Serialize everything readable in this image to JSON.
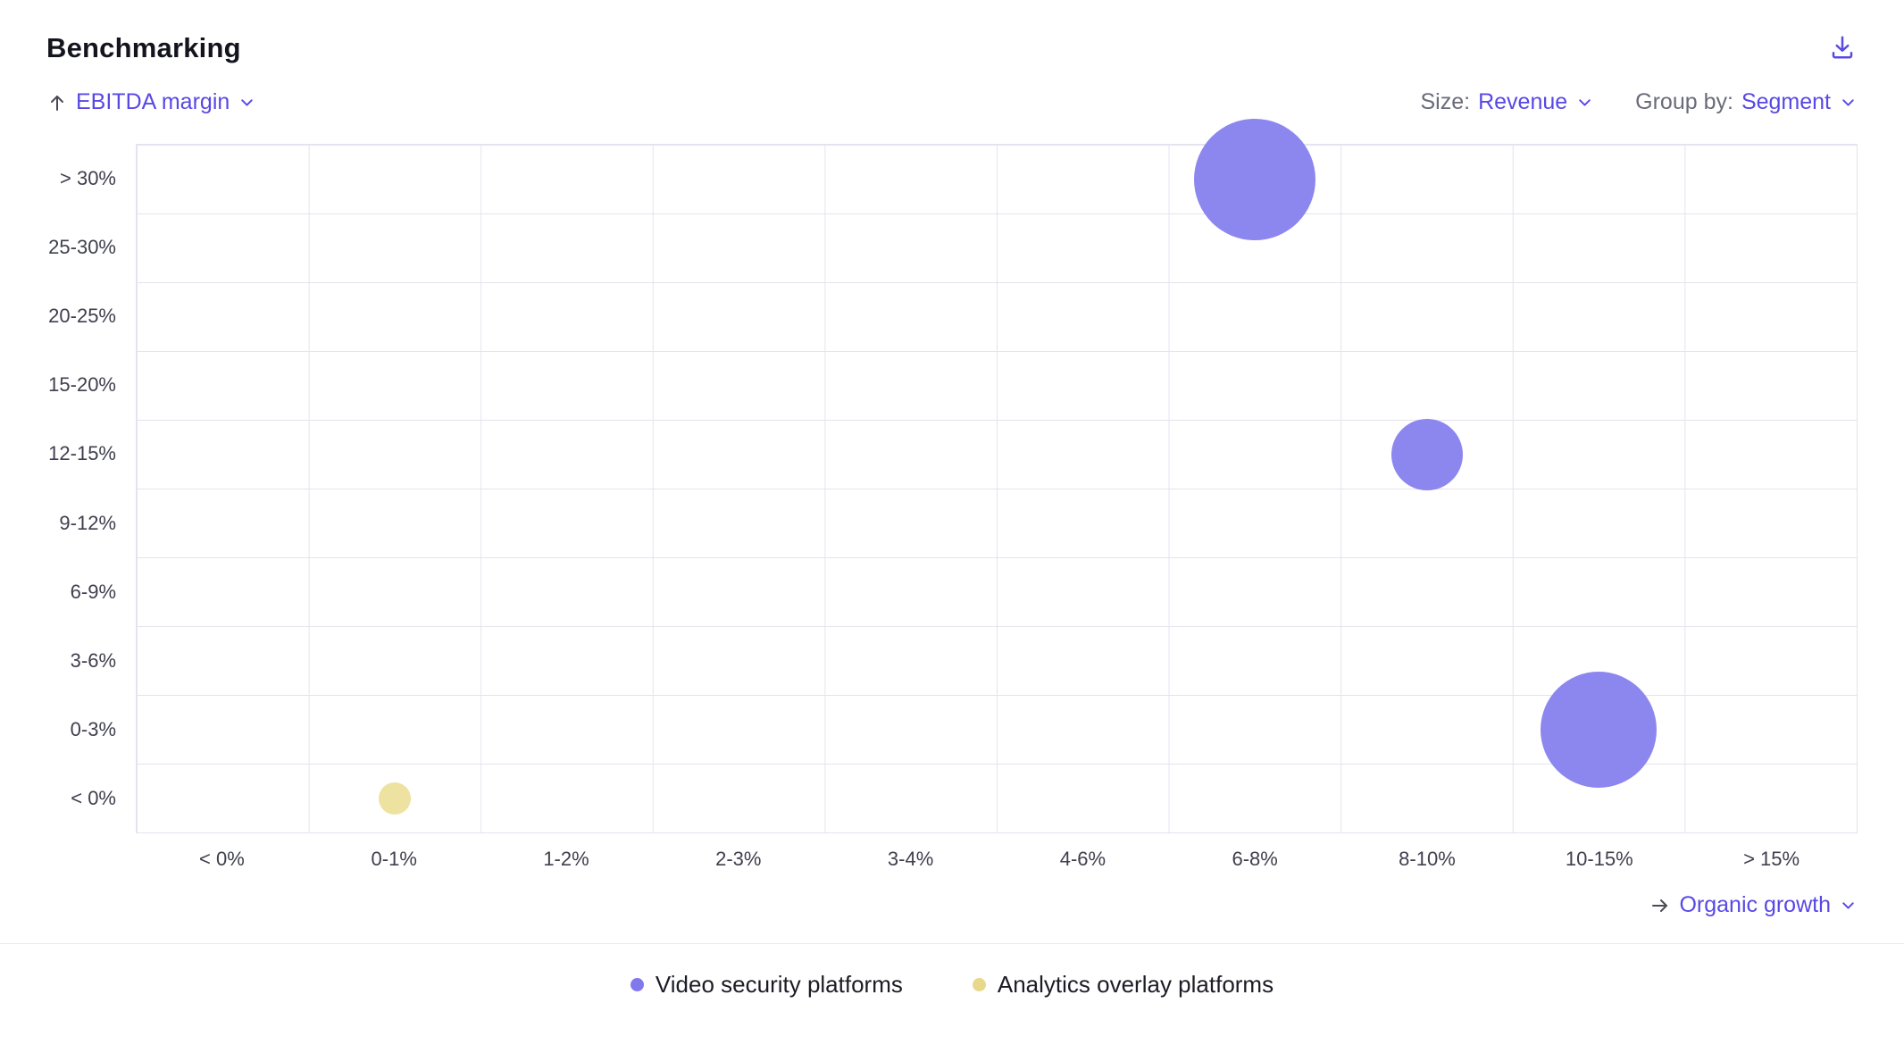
{
  "header": {
    "title": "Benchmarking"
  },
  "controls": {
    "y_axis": {
      "value": "EBITDA margin"
    },
    "size": {
      "label": "Size:",
      "value": "Revenue"
    },
    "group_by": {
      "label": "Group by:",
      "value": "Segment"
    },
    "x_axis": {
      "value": "Organic growth"
    }
  },
  "colors": {
    "accent": "#5848e5",
    "grid_line": "#e4e3ef",
    "purple_bubble": "#8c86ef",
    "yellow_bubble": "#eee2a0"
  },
  "chart_data": {
    "type": "scatter",
    "title": "Benchmarking",
    "xlabel": "Organic growth",
    "ylabel": "EBITDA margin",
    "size_by": "Revenue",
    "group_by": "Segment",
    "grid": true,
    "x_categories": [
      "< 0%",
      "0-1%",
      "1-2%",
      "2-3%",
      "3-4%",
      "4-6%",
      "6-8%",
      "8-10%",
      "10-15%",
      "> 15%"
    ],
    "y_categories": [
      "> 30%",
      "25-30%",
      "20-25%",
      "15-20%",
      "12-15%",
      "9-12%",
      "6-9%",
      "3-6%",
      "0-3%",
      "< 0%"
    ],
    "series": [
      {
        "name": "Video security platforms",
        "color": "#8c86ef",
        "points": [
          {
            "x": "6-8%",
            "y": "> 30%",
            "radius_px": 68
          },
          {
            "x": "8-10%",
            "y": "12-15%",
            "radius_px": 40
          },
          {
            "x": "10-15%",
            "y": "0-3%",
            "radius_px": 65
          }
        ]
      },
      {
        "name": "Analytics overlay platforms",
        "color": "#eee2a0",
        "points": [
          {
            "x": "0-1%",
            "y": "< 0%",
            "radius_px": 18
          }
        ]
      }
    ]
  },
  "legend": [
    {
      "label": "Video security platforms",
      "color": "#8278ee"
    },
    {
      "label": "Analytics overlay platforms",
      "color": "#e8d88c"
    }
  ]
}
